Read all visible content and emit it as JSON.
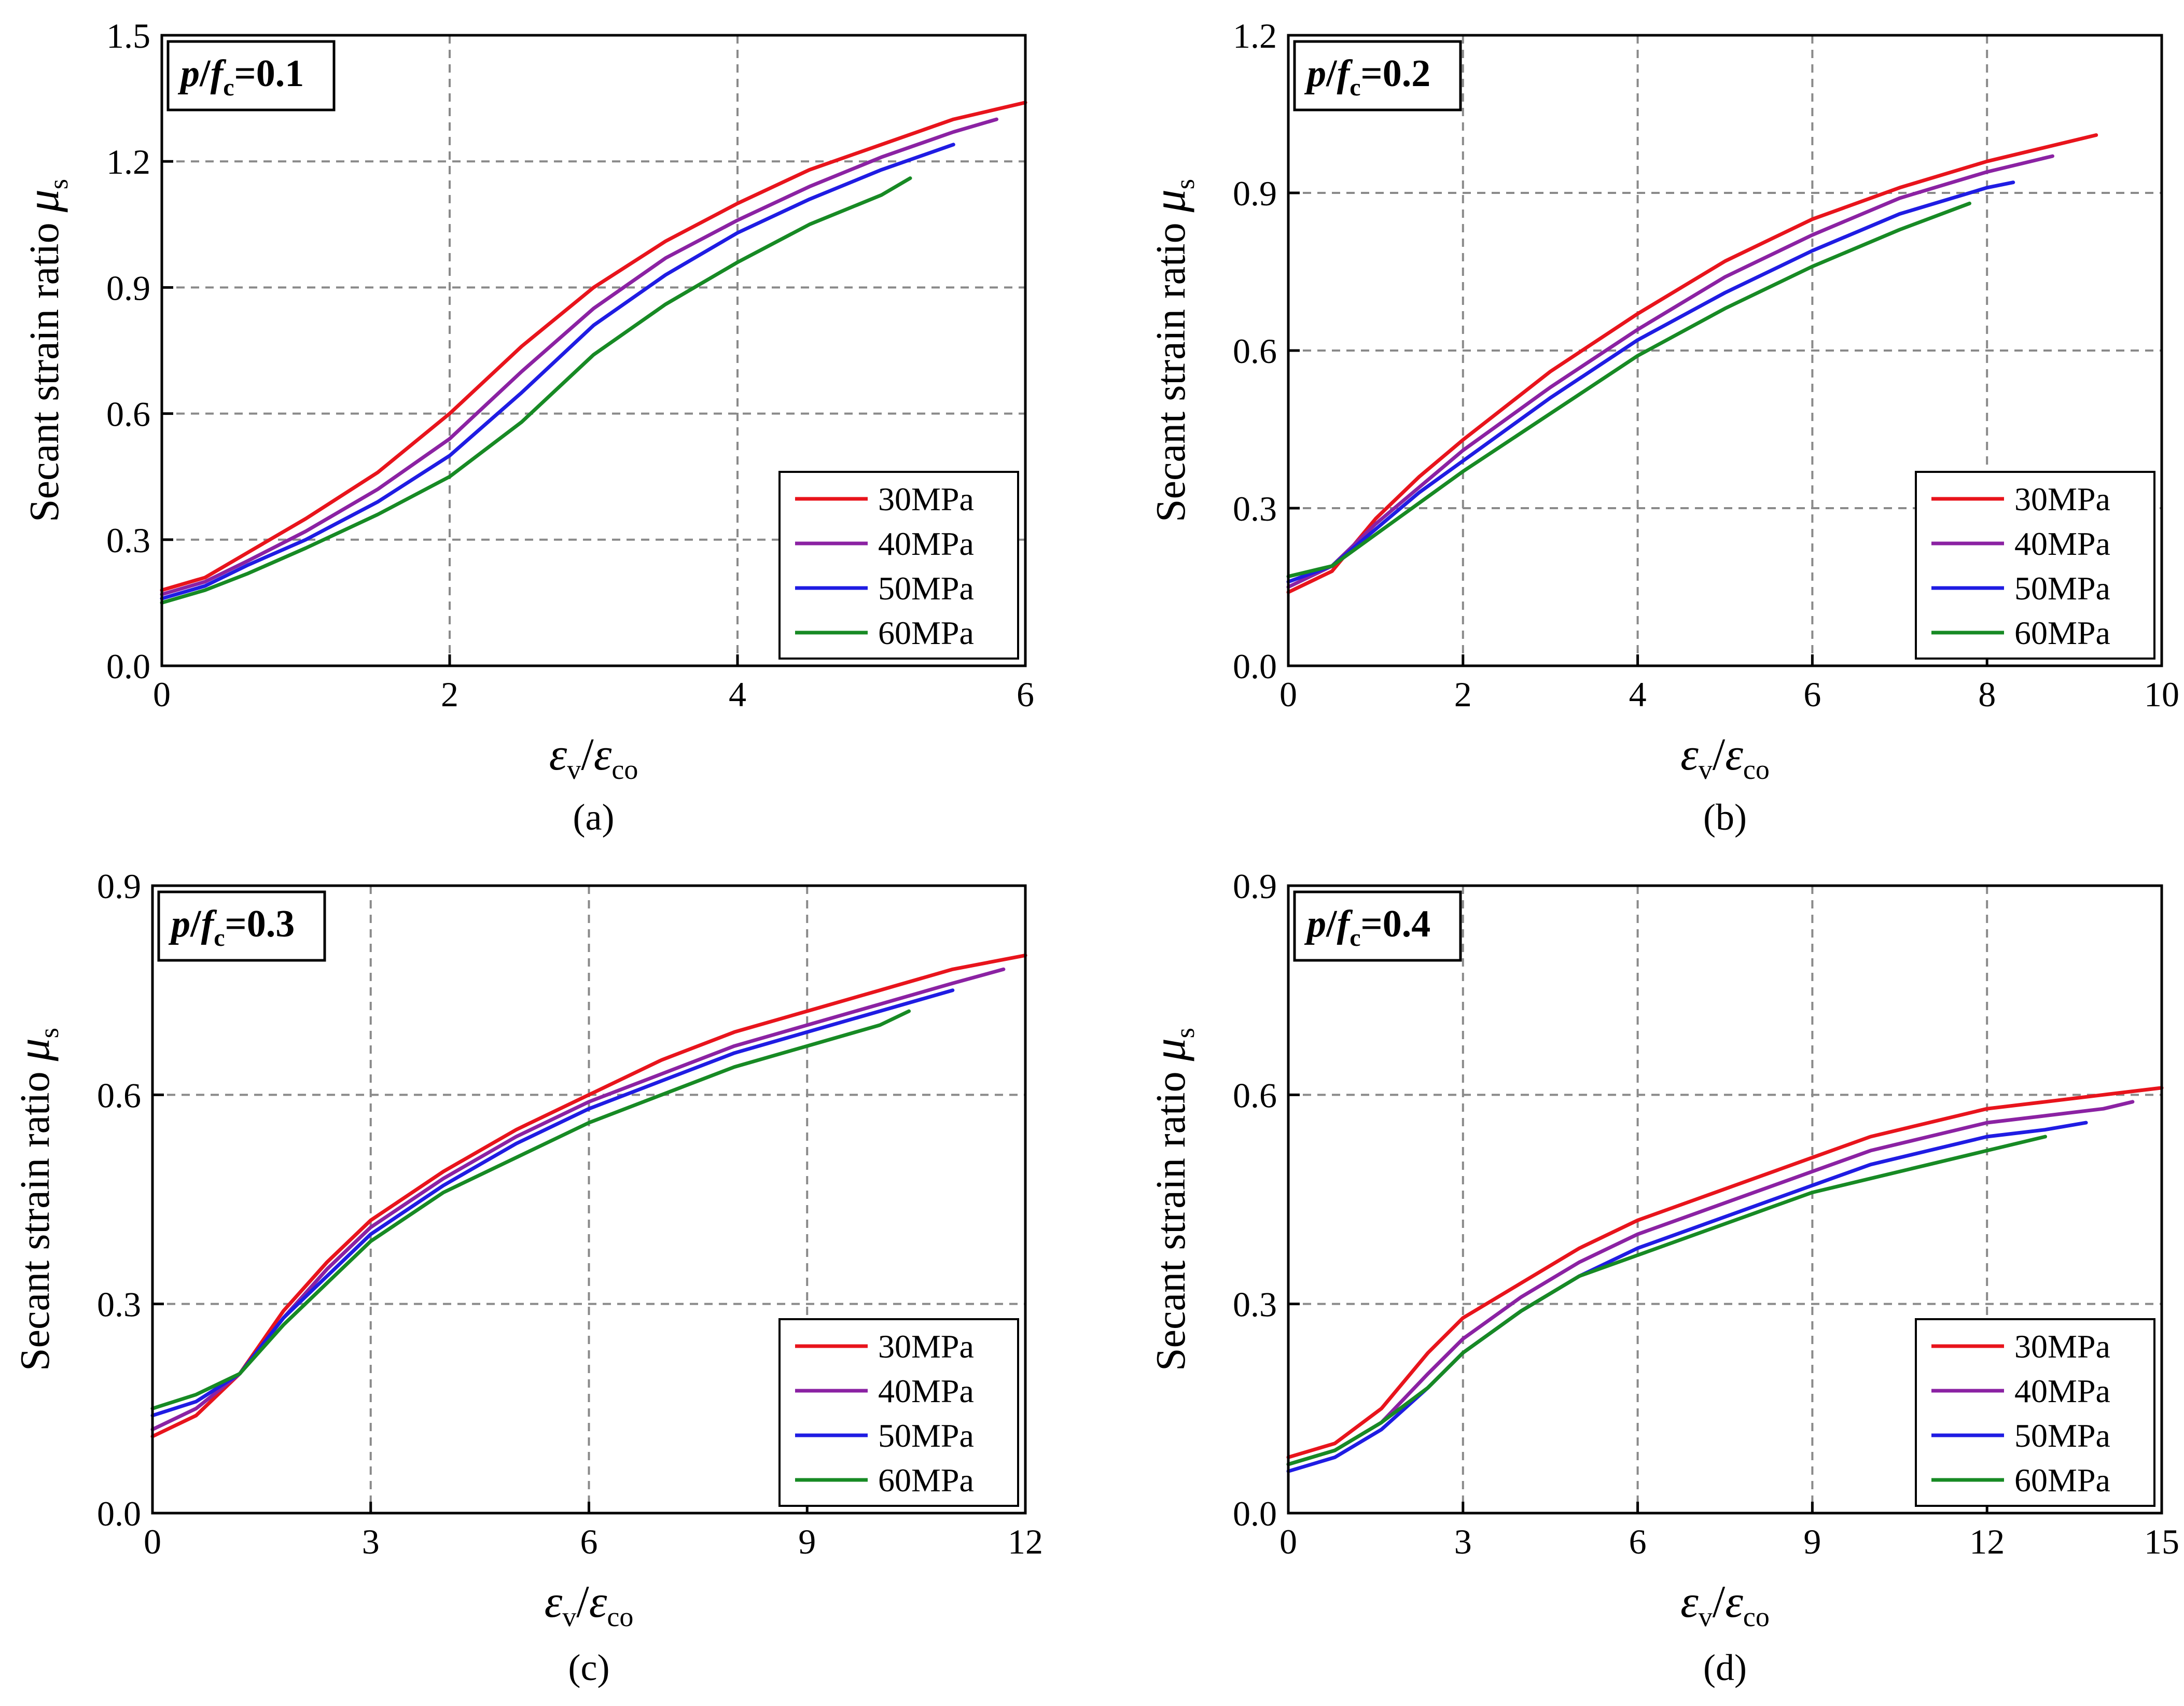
{
  "chart_data": [
    {
      "type": "line",
      "panel": "(a)",
      "annotation": {
        "var_p": "p",
        "var_f": "f",
        "sub": "c",
        "eq": "=0.1"
      },
      "xlabel": {
        "num": "ε",
        "num_sub": "v",
        "slash": "/",
        "den": "ε",
        "den_sub": "co"
      },
      "ylabel": {
        "text": "Secant strain ratio ",
        "sym": "μ",
        "sub": "s"
      },
      "xlim": [
        0,
        6
      ],
      "ylim": [
        0,
        1.5
      ],
      "xticks": [
        "0",
        "2",
        "4",
        "6"
      ],
      "yticks": [
        "0.0",
        "0.3",
        "0.6",
        "0.9",
        "1.2",
        "1.5"
      ],
      "legend": {
        "position": "bottom-right"
      },
      "series": [
        {
          "name": "30MPa",
          "color": "#e8141c",
          "x": [
            0,
            0.3,
            0.6,
            1.0,
            1.5,
            2.0,
            2.5,
            3.0,
            3.5,
            4.0,
            4.5,
            5.0,
            5.5,
            6.0
          ],
          "y": [
            0.18,
            0.21,
            0.27,
            0.35,
            0.46,
            0.6,
            0.76,
            0.9,
            1.01,
            1.1,
            1.18,
            1.24,
            1.3,
            1.34
          ]
        },
        {
          "name": "40MPa",
          "color": "#8b22a3",
          "x": [
            0,
            0.3,
            0.6,
            1.0,
            1.5,
            2.0,
            2.5,
            3.0,
            3.5,
            4.0,
            4.5,
            5.0,
            5.5,
            5.8
          ],
          "y": [
            0.17,
            0.2,
            0.25,
            0.32,
            0.42,
            0.54,
            0.7,
            0.85,
            0.97,
            1.06,
            1.14,
            1.21,
            1.27,
            1.3
          ]
        },
        {
          "name": "50MPa",
          "color": "#1f1ce3",
          "x": [
            0,
            0.3,
            0.6,
            1.0,
            1.5,
            2.0,
            2.5,
            3.0,
            3.5,
            4.0,
            4.5,
            5.0,
            5.5
          ],
          "y": [
            0.16,
            0.19,
            0.24,
            0.3,
            0.39,
            0.5,
            0.65,
            0.81,
            0.93,
            1.03,
            1.11,
            1.18,
            1.24
          ]
        },
        {
          "name": "60MPa",
          "color": "#178a24",
          "x": [
            0,
            0.3,
            0.6,
            1.0,
            1.5,
            2.0,
            2.5,
            3.0,
            3.5,
            4.0,
            4.5,
            5.0,
            5.2
          ],
          "y": [
            0.15,
            0.18,
            0.22,
            0.28,
            0.36,
            0.45,
            0.58,
            0.74,
            0.86,
            0.96,
            1.05,
            1.12,
            1.16
          ]
        }
      ]
    },
    {
      "type": "line",
      "panel": "(b)",
      "annotation": {
        "var_p": "p",
        "var_f": "f",
        "sub": "c",
        "eq": "=0.2"
      },
      "xlabel": {
        "num": "ε",
        "num_sub": "v",
        "slash": "/",
        "den": "ε",
        "den_sub": "co"
      },
      "ylabel": {
        "text": "Secant strain ratio ",
        "sym": "μ",
        "sub": "s"
      },
      "xlim": [
        0,
        10
      ],
      "ylim": [
        0,
        1.2
      ],
      "xticks": [
        "0",
        "2",
        "4",
        "6",
        "8",
        "10"
      ],
      "yticks": [
        "0.0",
        "0.3",
        "0.6",
        "0.9",
        "1.2"
      ],
      "legend": {
        "position": "bottom-right"
      },
      "series": [
        {
          "name": "30MPa",
          "color": "#e8141c",
          "x": [
            0,
            0.5,
            1.0,
            1.5,
            2,
            3,
            4,
            5,
            6,
            7,
            8,
            9.25
          ],
          "y": [
            0.14,
            0.18,
            0.28,
            0.36,
            0.43,
            0.56,
            0.67,
            0.77,
            0.85,
            0.91,
            0.96,
            1.01
          ]
        },
        {
          "name": "40MPa",
          "color": "#8b22a3",
          "x": [
            0,
            0.5,
            1.0,
            1.5,
            2,
            3,
            4,
            5,
            6,
            7,
            8,
            8.75
          ],
          "y": [
            0.15,
            0.19,
            0.27,
            0.34,
            0.41,
            0.53,
            0.64,
            0.74,
            0.82,
            0.89,
            0.94,
            0.97
          ]
        },
        {
          "name": "50MPa",
          "color": "#1f1ce3",
          "x": [
            0,
            0.5,
            1.0,
            1.5,
            2,
            3,
            4,
            5,
            6,
            7,
            8,
            8.3
          ],
          "y": [
            0.16,
            0.19,
            0.26,
            0.33,
            0.39,
            0.51,
            0.62,
            0.71,
            0.79,
            0.86,
            0.91,
            0.92
          ]
        },
        {
          "name": "60MPa",
          "color": "#178a24",
          "x": [
            0,
            0.5,
            1.0,
            1.5,
            2,
            3,
            4,
            5,
            6,
            7,
            7.8
          ],
          "y": [
            0.17,
            0.19,
            0.25,
            0.31,
            0.37,
            0.48,
            0.59,
            0.68,
            0.76,
            0.83,
            0.88
          ]
        }
      ]
    },
    {
      "type": "line",
      "panel": "(c)",
      "annotation": {
        "var_p": "p",
        "var_f": "f",
        "sub": "c",
        "eq": "=0.3"
      },
      "xlabel": {
        "num": "ε",
        "num_sub": "v",
        "slash": "/",
        "den": "ε",
        "den_sub": "co"
      },
      "ylabel": {
        "text": "Secant strain ratio ",
        "sym": "μ",
        "sub": "s"
      },
      "xlim": [
        0,
        12
      ],
      "ylim": [
        0,
        0.9
      ],
      "xticks": [
        "0",
        "3",
        "6",
        "9",
        "12"
      ],
      "yticks": [
        "0.0",
        "0.3",
        "0.6",
        "0.9"
      ],
      "legend": {
        "position": "bottom-right"
      },
      "series": [
        {
          "name": "30MPa",
          "color": "#e8141c",
          "x": [
            0,
            0.6,
            1.2,
            1.8,
            2.4,
            3,
            4,
            5,
            6,
            7,
            8,
            9,
            10,
            11,
            12
          ],
          "y": [
            0.11,
            0.14,
            0.2,
            0.29,
            0.36,
            0.42,
            0.49,
            0.55,
            0.6,
            0.65,
            0.69,
            0.72,
            0.75,
            0.78,
            0.8
          ]
        },
        {
          "name": "40MPa",
          "color": "#8b22a3",
          "x": [
            0,
            0.6,
            1.2,
            1.8,
            2.4,
            3,
            4,
            5,
            6,
            7,
            8,
            9,
            10,
            11,
            11.7
          ],
          "y": [
            0.12,
            0.15,
            0.2,
            0.28,
            0.35,
            0.41,
            0.48,
            0.54,
            0.59,
            0.63,
            0.67,
            0.7,
            0.73,
            0.76,
            0.78
          ]
        },
        {
          "name": "50MPa",
          "color": "#1f1ce3",
          "x": [
            0,
            0.6,
            1.2,
            1.8,
            2.4,
            3,
            4,
            5,
            6,
            7,
            8,
            9,
            10,
            11
          ],
          "y": [
            0.14,
            0.16,
            0.2,
            0.28,
            0.34,
            0.4,
            0.47,
            0.53,
            0.58,
            0.62,
            0.66,
            0.69,
            0.72,
            0.75
          ]
        },
        {
          "name": "60MPa",
          "color": "#178a24",
          "x": [
            0,
            0.6,
            1.2,
            1.8,
            2.4,
            3,
            4,
            5,
            6,
            7,
            8,
            9,
            10,
            10.4
          ],
          "y": [
            0.15,
            0.17,
            0.2,
            0.27,
            0.33,
            0.39,
            0.46,
            0.51,
            0.56,
            0.6,
            0.64,
            0.67,
            0.7,
            0.72
          ]
        }
      ]
    },
    {
      "type": "line",
      "panel": "(d)",
      "annotation": {
        "var_p": "p",
        "var_f": "f",
        "sub": "c",
        "eq": "=0.4"
      },
      "xlabel": {
        "num": "ε",
        "num_sub": "v",
        "slash": "/",
        "den": "ε",
        "den_sub": "co"
      },
      "ylabel": {
        "text": "Secant strain ratio ",
        "sym": "μ",
        "sub": "s"
      },
      "xlim": [
        0,
        15
      ],
      "ylim": [
        0,
        0.9
      ],
      "xticks": [
        "0",
        "3",
        "6",
        "9",
        "12",
        "15"
      ],
      "yticks": [
        "0.0",
        "0.3",
        "0.6",
        "0.9"
      ],
      "legend": {
        "position": "bottom-right"
      },
      "series": [
        {
          "name": "30MPa",
          "color": "#e8141c",
          "x": [
            0,
            0.8,
            1.6,
            2.4,
            3,
            4,
            5,
            6,
            7,
            8,
            9,
            10,
            11,
            12,
            13,
            14,
            15
          ],
          "y": [
            0.08,
            0.1,
            0.15,
            0.23,
            0.28,
            0.33,
            0.38,
            0.42,
            0.45,
            0.48,
            0.51,
            0.54,
            0.56,
            0.58,
            0.59,
            0.6,
            0.61
          ]
        },
        {
          "name": "40MPa",
          "color": "#8b22a3",
          "x": [
            0,
            0.8,
            1.6,
            2.4,
            3,
            4,
            5,
            6,
            7,
            8,
            9,
            10,
            11,
            12,
            13,
            14,
            14.5
          ],
          "y": [
            0.07,
            0.09,
            0.13,
            0.2,
            0.25,
            0.31,
            0.36,
            0.4,
            0.43,
            0.46,
            0.49,
            0.52,
            0.54,
            0.56,
            0.57,
            0.58,
            0.59
          ]
        },
        {
          "name": "50MPa",
          "color": "#1f1ce3",
          "x": [
            0,
            0.8,
            1.6,
            2.4,
            3,
            4,
            5,
            6,
            7,
            8,
            9,
            10,
            11,
            12,
            13,
            13.7
          ],
          "y": [
            0.06,
            0.08,
            0.12,
            0.18,
            0.23,
            0.29,
            0.34,
            0.38,
            0.41,
            0.44,
            0.47,
            0.5,
            0.52,
            0.54,
            0.55,
            0.56
          ]
        },
        {
          "name": "60MPa",
          "color": "#178a24",
          "x": [
            0,
            0.8,
            1.6,
            2.4,
            3,
            4,
            5,
            6,
            7,
            8,
            9,
            10,
            11,
            12,
            13
          ],
          "y": [
            0.07,
            0.09,
            0.13,
            0.18,
            0.23,
            0.29,
            0.34,
            0.37,
            0.4,
            0.43,
            0.46,
            0.48,
            0.5,
            0.52,
            0.54
          ]
        }
      ]
    }
  ]
}
